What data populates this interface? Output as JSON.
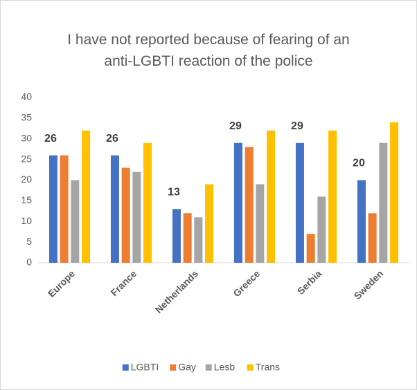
{
  "chart_data": {
    "type": "bar",
    "title": "I have not reported because of fearing of an anti-LGBTI reaction of the police",
    "categories": [
      "Europe",
      "France",
      "Netherlands",
      "Greece",
      "Serbia",
      "Sweden"
    ],
    "series": [
      {
        "name": "LGBTI",
        "color": "#4472c4",
        "values": [
          26,
          26,
          13,
          29,
          29,
          20
        ],
        "show_labels": true
      },
      {
        "name": "Gay",
        "color": "#ed7d31",
        "values": [
          26,
          23,
          12,
          28,
          7,
          12
        ]
      },
      {
        "name": "Lesb",
        "color": "#a5a5a5",
        "values": [
          20,
          22,
          11,
          19,
          16,
          29
        ]
      },
      {
        "name": "Trans",
        "color": "#ffc000",
        "values": [
          32,
          29,
          19,
          32,
          32,
          34
        ]
      }
    ],
    "ylim": [
      0,
      40
    ],
    "yticks": [
      0,
      5,
      10,
      15,
      20,
      25,
      30,
      35,
      40
    ],
    "grid": false,
    "legend": "bottom"
  }
}
